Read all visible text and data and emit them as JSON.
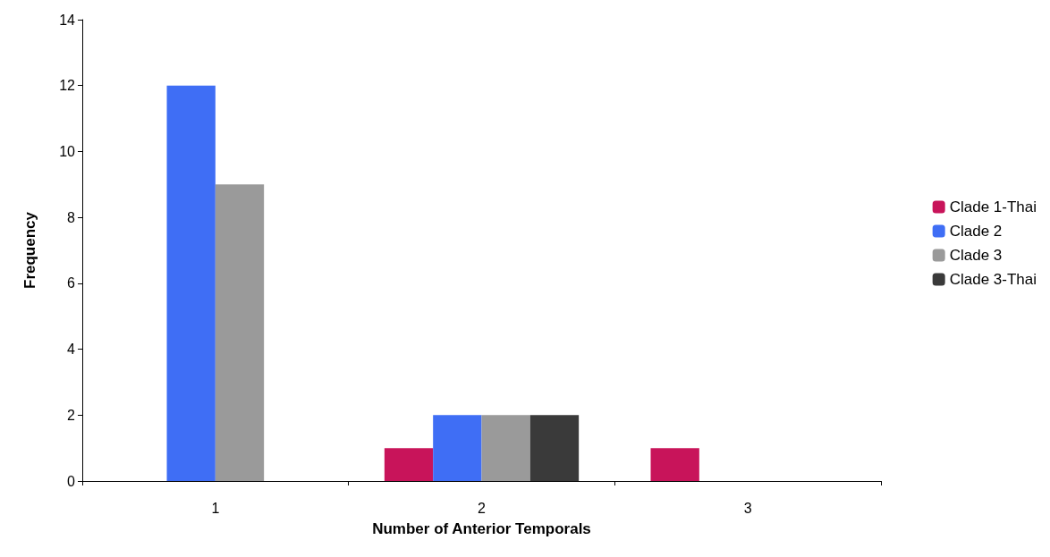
{
  "chart_data": {
    "type": "bar",
    "xlabel": "Number of Anterior Temporals",
    "ylabel": "Frequency",
    "categories": [
      "1",
      "2",
      "3"
    ],
    "series": [
      {
        "name": "Clade 1-Thai",
        "color": "#c8145a",
        "values": [
          0,
          1,
          1
        ]
      },
      {
        "name": "Clade 2",
        "color": "#3f6ef5",
        "values": [
          12,
          2,
          0
        ]
      },
      {
        "name": "Clade 3",
        "color": "#9a9a9a",
        "values": [
          9,
          2,
          0
        ]
      },
      {
        "name": "Clade 3-Thai",
        "color": "#3a3a3a",
        "values": [
          0,
          2,
          0
        ]
      }
    ],
    "ylim": [
      0,
      14
    ],
    "yticks": [
      0,
      2,
      4,
      6,
      8,
      10,
      12,
      14
    ],
    "grid": false,
    "legend": "right"
  }
}
